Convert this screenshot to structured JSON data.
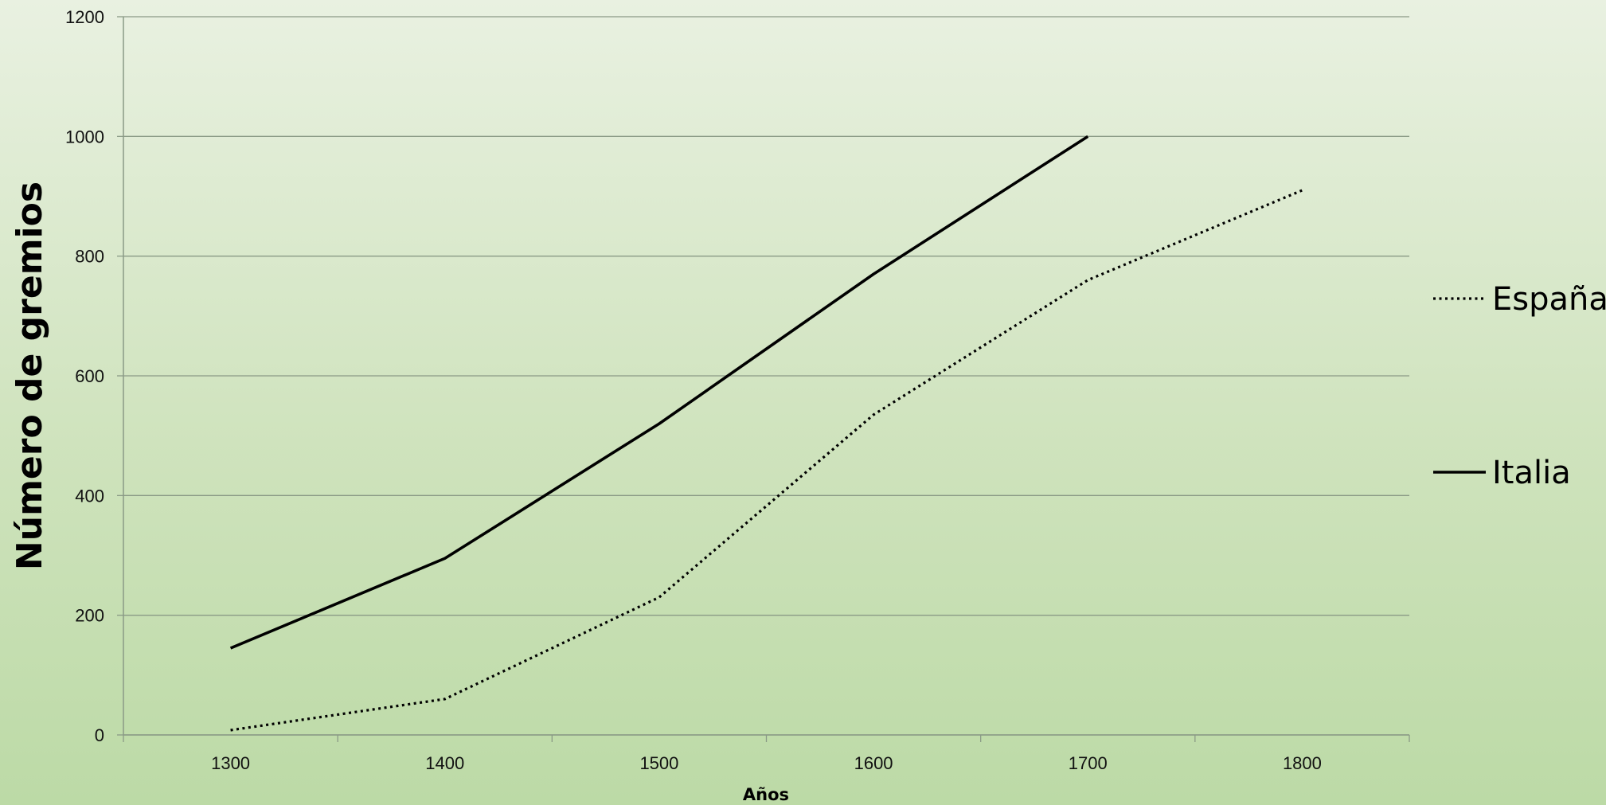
{
  "chart_data": {
    "type": "line",
    "title": "",
    "xlabel": "Años",
    "ylabel": "Número de gremios",
    "x": [
      1300,
      1400,
      1500,
      1600,
      1700,
      1800
    ],
    "xlim": [
      1250,
      1850
    ],
    "ylim": [
      0,
      1200
    ],
    "yticks": [
      0,
      200,
      400,
      600,
      800,
      1000,
      1200
    ],
    "grid": true,
    "legend": "right",
    "series": [
      {
        "name": "España",
        "style": "dotted",
        "color": "#000000",
        "values": [
          8,
          60,
          230,
          535,
          760,
          910
        ]
      },
      {
        "name": "Italia",
        "style": "solid",
        "color": "#000000",
        "values": [
          145,
          295,
          520,
          770,
          1000,
          null
        ]
      }
    ]
  }
}
